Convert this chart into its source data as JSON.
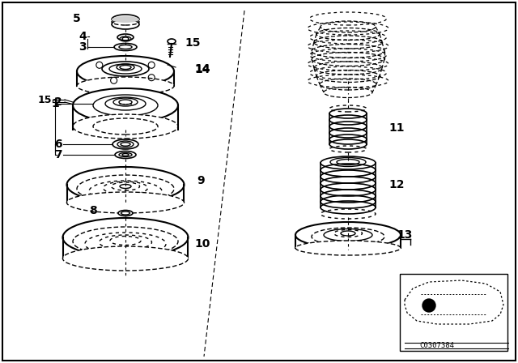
{
  "background_color": "#ffffff",
  "border_color": "#000000",
  "line_color": "#000000",
  "text_color": "#000000",
  "fig_width": 6.4,
  "fig_height": 4.48,
  "dpi": 100
}
